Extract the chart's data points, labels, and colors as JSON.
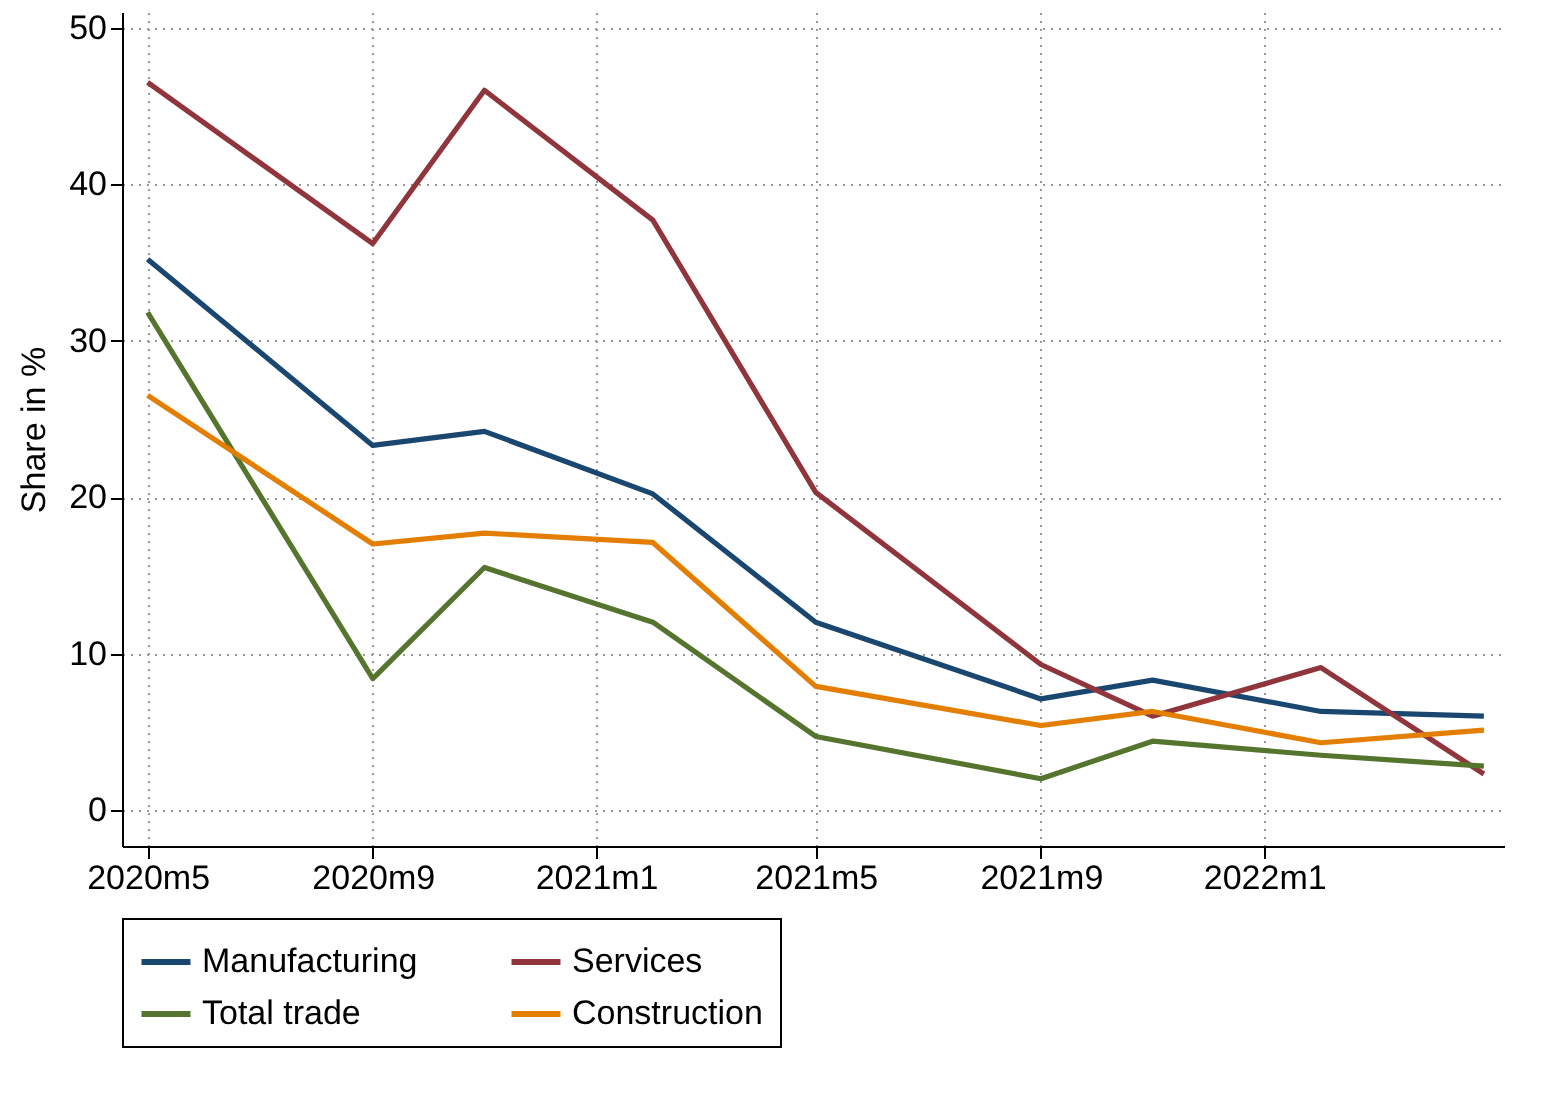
{
  "chart_data": {
    "type": "line",
    "ylabel": "Share in %",
    "x": [
      "2020-05",
      "2020-09",
      "2020-11",
      "2021-02",
      "2021-05",
      "2021-09",
      "2021-11",
      "2022-02",
      "2022-05"
    ],
    "series": [
      {
        "name": "Manufacturing",
        "color": "#1a476f",
        "values": [
          35.2,
          23.3,
          24.2,
          20.2,
          12.0,
          7.1,
          8.3,
          6.3,
          6.0
        ]
      },
      {
        "name": "Services",
        "color": "#90353b",
        "values": [
          46.5,
          36.2,
          46.0,
          37.7,
          20.3,
          9.3,
          6.0,
          9.1,
          2.3
        ]
      },
      {
        "name": "Total trade",
        "color": "#55752f",
        "values": [
          31.8,
          8.4,
          15.5,
          12.0,
          4.7,
          2.0,
          4.4,
          3.5,
          2.8
        ]
      },
      {
        "name": "Construction",
        "color": "#e37e00",
        "values": [
          26.5,
          17.0,
          17.7,
          17.1,
          7.9,
          5.4,
          6.3,
          4.3,
          5.1
        ]
      }
    ],
    "xlim": [
      "2020-04-17",
      "2022-05-12"
    ],
    "xticks": [
      {
        "value": "2020-05",
        "label": "2020m5"
      },
      {
        "value": "2020-09",
        "label": "2020m9"
      },
      {
        "value": "2021-01",
        "label": "2021m1"
      },
      {
        "value": "2021-05",
        "label": "2021m5"
      },
      {
        "value": "2021-09",
        "label": "2021m9"
      },
      {
        "value": "2022-01",
        "label": "2022m1"
      }
    ],
    "ylim": [
      -2.3,
      51
    ],
    "yticks": [
      0,
      10,
      20,
      30,
      40,
      50
    ],
    "grid": true,
    "legend": "bottom",
    "marker": "none",
    "line_style": "solid"
  }
}
